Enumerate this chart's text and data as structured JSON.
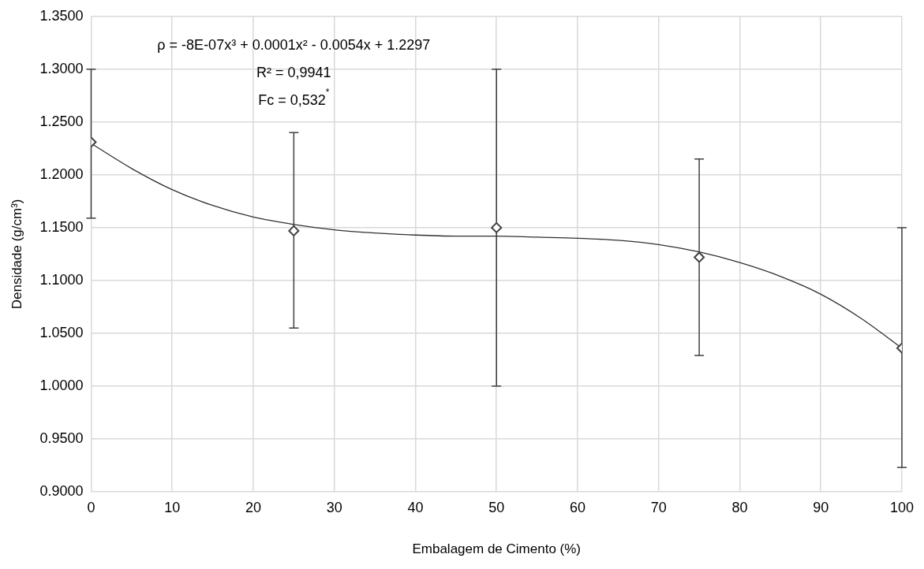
{
  "chart_data": {
    "type": "scatter",
    "xlabel": "Embalagem de Cimento (%)",
    "ylabel": "Densidade (g/cm³)",
    "xlim": [
      0,
      100
    ],
    "xticks": [
      0,
      10,
      20,
      30,
      40,
      50,
      60,
      70,
      80,
      90,
      100
    ],
    "ylim": [
      0.9,
      1.35
    ],
    "yticks": [
      {
        "value": 0.9,
        "label": "0.9000"
      },
      {
        "value": 0.95,
        "label": "0.9500"
      },
      {
        "value": 1.0,
        "label": "1.0000"
      },
      {
        "value": 1.05,
        "label": "1.0500"
      },
      {
        "value": 1.1,
        "label": "1.1000"
      },
      {
        "value": 1.15,
        "label": "1.1500"
      },
      {
        "value": 1.2,
        "label": "1.2000"
      },
      {
        "value": 1.25,
        "label": "1.2500"
      },
      {
        "value": 1.3,
        "label": "1.3000"
      },
      {
        "value": 1.35,
        "label": "1.3500"
      }
    ],
    "grid": true,
    "legend": false,
    "series": [
      {
        "marker": "diamond",
        "color": "#404040",
        "x": [
          0,
          25,
          50,
          75,
          100
        ],
        "values": [
          1.231,
          1.147,
          1.15,
          1.122,
          1.036
        ],
        "errors": [
          [
            1.159,
            1.3
          ],
          [
            1.055,
            1.24
          ],
          [
            1.0,
            1.3
          ],
          [
            1.029,
            1.215
          ],
          [
            0.923,
            1.15
          ]
        ]
      },
      {
        "type": "line",
        "marker": "none",
        "color": "#303030",
        "x": [
          0,
          5,
          10,
          15,
          20,
          25,
          30,
          35,
          40,
          45,
          50,
          55,
          60,
          65,
          70,
          75,
          80,
          85,
          90,
          95,
          100
        ],
        "values": [
          1.2297,
          1.206,
          1.186,
          1.171,
          1.16,
          1.153,
          1.148,
          1.145,
          1.143,
          1.142,
          1.142,
          1.141,
          1.14,
          1.138,
          1.134,
          1.127,
          1.117,
          1.104,
          1.087,
          1.064,
          1.036
        ]
      }
    ],
    "annotations": [
      "ρ = -8E-07x³ + 0.0001x² - 0.0054x + 1.2297",
      "R² = 0,9941",
      "Fc = 0,532$^{*}$"
    ]
  }
}
